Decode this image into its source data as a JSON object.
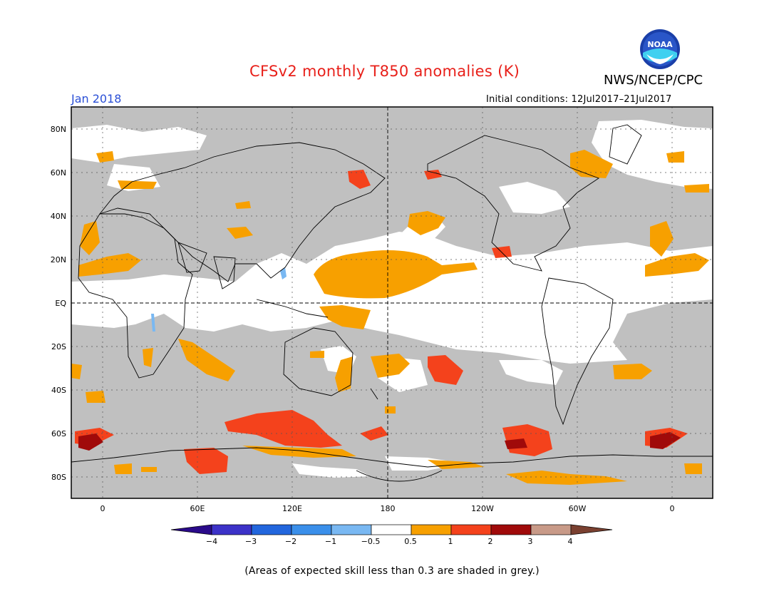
{
  "header": {
    "title": "CFSv2 monthly T850 anomalies (K)",
    "agency": "NWS/NCEP/CPC",
    "logo_text": "NOAA",
    "month": "Jan 2018",
    "initial_conditions": "Initial conditions: 12Jul2017–21Jul2017"
  },
  "map": {
    "lat_labels": [
      "80N",
      "60N",
      "40N",
      "20N",
      "EQ",
      "20S",
      "40S",
      "60S",
      "80S"
    ],
    "lon_labels": [
      "0",
      "60E",
      "120E",
      "180",
      "120W",
      "60W",
      "0"
    ],
    "grey_meaning": "Areas of expected skill less than 0.3 are shaded in grey."
  },
  "colorbar": {
    "tick_labels": [
      "−4",
      "−3",
      "−2",
      "−1",
      "−0.5",
      "0.5",
      "1",
      "2",
      "3",
      "4"
    ],
    "colors": [
      "#2a0a8a",
      "#3c32c8",
      "#2266dd",
      "#3a8fea",
      "#79b8f2",
      "#ffffff",
      "#f7a000",
      "#f4421c",
      "#a00a0a",
      "#c89a88",
      "#7a4030"
    ]
  },
  "footnote": "(Areas of expected skill less than 0.3 are shaded in grey.)"
}
